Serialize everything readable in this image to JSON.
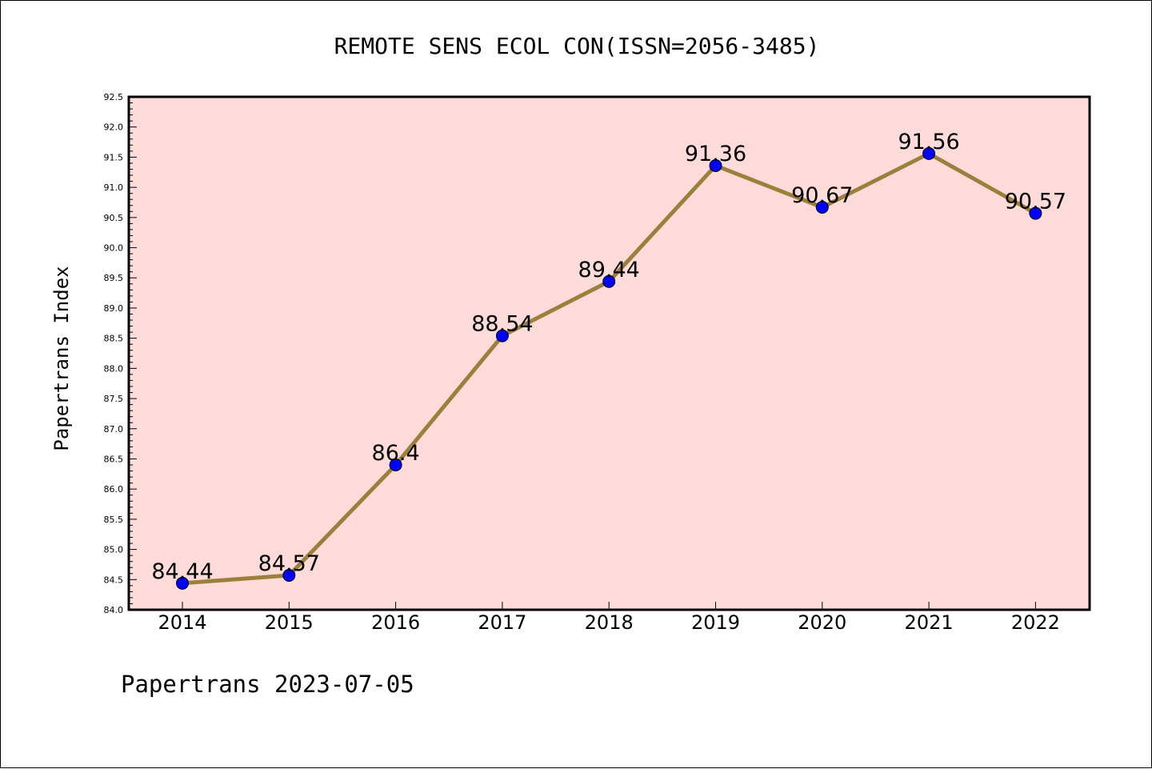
{
  "chart_data": {
    "type": "line",
    "title": "REMOTE SENS ECOL CON(ISSN=2056-3485)",
    "xlabel": "",
    "ylabel": "Papertrans Index",
    "categories": [
      "2014",
      "2015",
      "2016",
      "2017",
      "2018",
      "2019",
      "2020",
      "2021",
      "2022"
    ],
    "series": [
      {
        "values": [
          84.44,
          84.57,
          86.4,
          88.54,
          89.44,
          91.36,
          90.67,
          91.56,
          90.57
        ],
        "labels": [
          "84.44",
          "84.57",
          "86.4",
          "88.54",
          "89.44",
          "91.36",
          "90.67",
          "91.56",
          "90.57"
        ],
        "line_color": "#9b7f3b",
        "marker_color": "#0000ff"
      }
    ],
    "ylim": [
      84.0,
      92.5
    ],
    "y_major_step": 0.5,
    "y_minor_step": 0.1,
    "plot_background": "#ffdcd9",
    "grid": false,
    "legend": "none"
  },
  "footer": {
    "text": "Papertrans 2023-07-05"
  }
}
